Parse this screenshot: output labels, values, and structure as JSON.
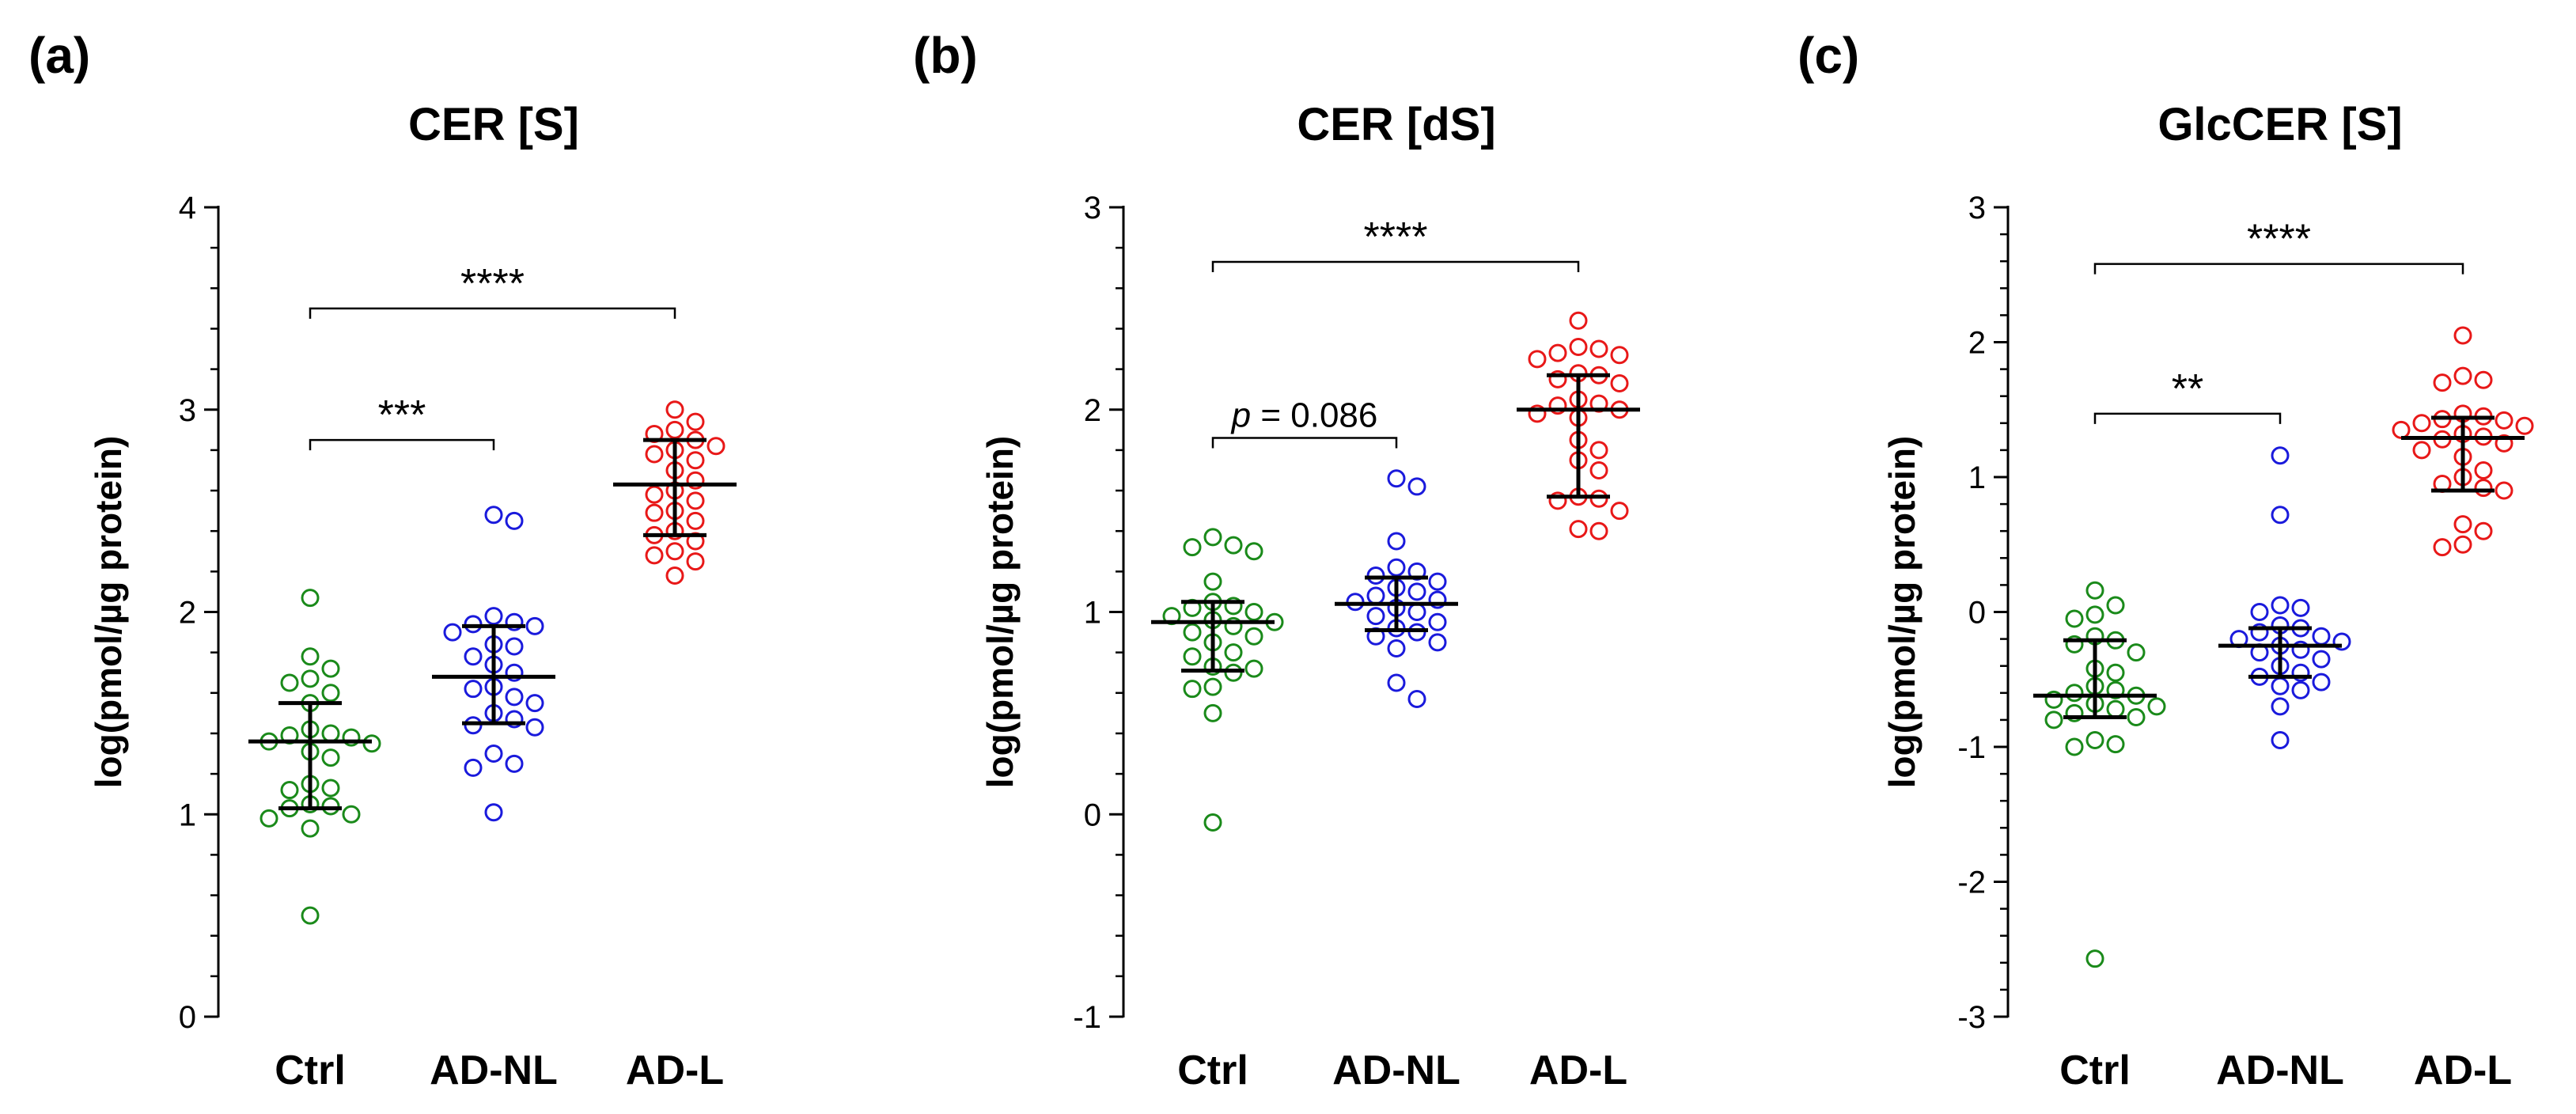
{
  "figure": {
    "y_label": "log(pmol/µg protein)",
    "colors": {
      "Ctrl": "#1a8a1a",
      "AD-NL": "#1a1adc",
      "AD-L": "#e81818",
      "axis": "#000000"
    }
  },
  "chart_data": [
    {
      "type": "scatter",
      "panel_label": "(a)",
      "title": "CER [S]",
      "ylabel": "log(pmol/µg protein)",
      "xlabel": "",
      "categories": [
        "Ctrl",
        "AD-NL",
        "AD-L"
      ],
      "ylim": [
        0,
        4
      ],
      "yticks": [
        0,
        1,
        2,
        3,
        4
      ],
      "tick_labels": [
        "0",
        "1",
        "2",
        "3",
        "4"
      ],
      "series": [
        {
          "name": "Ctrl",
          "median": 1.36,
          "q1": 1.03,
          "q3": 1.55,
          "values": [
            2.07,
            1.78,
            1.72,
            1.67,
            1.65,
            1.6,
            1.55,
            1.42,
            1.4,
            1.39,
            1.38,
            1.36,
            1.35,
            1.31,
            1.28,
            1.15,
            1.13,
            1.12,
            1.05,
            1.04,
            1.03,
            1.0,
            0.98,
            0.93,
            0.5
          ]
        },
        {
          "name": "AD-NL",
          "median": 1.68,
          "q1": 1.45,
          "q3": 1.93,
          "values": [
            2.48,
            2.45,
            1.98,
            1.95,
            1.94,
            1.93,
            1.9,
            1.84,
            1.83,
            1.78,
            1.74,
            1.7,
            1.63,
            1.62,
            1.58,
            1.55,
            1.5,
            1.47,
            1.44,
            1.43,
            1.3,
            1.25,
            1.23,
            1.01
          ]
        },
        {
          "name": "AD-L",
          "median": 2.63,
          "q1": 2.38,
          "q3": 2.85,
          "values": [
            3.0,
            2.94,
            2.9,
            2.88,
            2.85,
            2.82,
            2.8,
            2.78,
            2.75,
            2.7,
            2.65,
            2.6,
            2.58,
            2.55,
            2.5,
            2.49,
            2.45,
            2.4,
            2.38,
            2.35,
            2.3,
            2.28,
            2.25,
            2.18
          ]
        }
      ],
      "annotations": [
        {
          "from": "Ctrl",
          "to": "AD-L",
          "y": 3.5,
          "label": "****",
          "italic_prefix": ""
        },
        {
          "from": "Ctrl",
          "to": "AD-NL",
          "y": 2.85,
          "label": "***",
          "italic_prefix": ""
        }
      ]
    },
    {
      "type": "scatter",
      "panel_label": "(b)",
      "title": "CER [dS]",
      "ylabel": "log(pmol/µg protein)",
      "xlabel": "",
      "categories": [
        "Ctrl",
        "AD-NL",
        "AD-L"
      ],
      "ylim": [
        -1,
        3
      ],
      "yticks": [
        -1,
        0,
        1,
        2,
        3
      ],
      "tick_labels": [
        "-1",
        "0",
        "1",
        "2",
        "3"
      ],
      "series": [
        {
          "name": "Ctrl",
          "median": 0.95,
          "q1": 0.71,
          "q3": 1.05,
          "values": [
            1.37,
            1.33,
            1.32,
            1.3,
            1.15,
            1.05,
            1.03,
            1.02,
            1.0,
            0.98,
            0.96,
            0.95,
            0.93,
            0.9,
            0.88,
            0.85,
            0.8,
            0.78,
            0.73,
            0.72,
            0.7,
            0.63,
            0.62,
            0.5,
            -0.04
          ]
        },
        {
          "name": "AD-NL",
          "median": 1.04,
          "q1": 0.91,
          "q3": 1.17,
          "values": [
            1.66,
            1.62,
            1.35,
            1.22,
            1.2,
            1.18,
            1.15,
            1.12,
            1.1,
            1.08,
            1.06,
            1.05,
            1.02,
            1.0,
            0.98,
            0.95,
            0.92,
            0.9,
            0.88,
            0.85,
            0.82,
            0.65,
            0.57
          ]
        },
        {
          "name": "AD-L",
          "median": 2.0,
          "q1": 1.57,
          "q3": 2.17,
          "values": [
            2.44,
            2.31,
            2.3,
            2.28,
            2.27,
            2.25,
            2.18,
            2.17,
            2.15,
            2.13,
            2.05,
            2.03,
            2.02,
            2.0,
            1.98,
            1.96,
            1.85,
            1.8,
            1.75,
            1.7,
            1.57,
            1.56,
            1.55,
            1.5,
            1.41,
            1.4
          ]
        }
      ],
      "annotations": [
        {
          "from": "Ctrl",
          "to": "AD-L",
          "y": 2.73,
          "label": "****",
          "italic_prefix": ""
        },
        {
          "from": "Ctrl",
          "to": "AD-NL",
          "y": 1.86,
          "label": " = 0.086",
          "italic_prefix": "p"
        }
      ]
    },
    {
      "type": "scatter",
      "panel_label": "(c)",
      "title": "GlcCER [S]",
      "ylabel": "log(pmol/µg protein)",
      "xlabel": "",
      "categories": [
        "Ctrl",
        "AD-NL",
        "AD-L"
      ],
      "ylim": [
        -3,
        3
      ],
      "yticks": [
        -3,
        -2,
        -1,
        0,
        1,
        2,
        3
      ],
      "tick_labels": [
        "-3",
        "-2",
        "-1",
        "0",
        "1",
        "2",
        "3"
      ],
      "series": [
        {
          "name": "Ctrl",
          "median": -0.62,
          "q1": -0.78,
          "q3": -0.21,
          "values": [
            0.16,
            0.05,
            -0.02,
            -0.05,
            -0.18,
            -0.21,
            -0.24,
            -0.3,
            -0.42,
            -0.45,
            -0.55,
            -0.58,
            -0.6,
            -0.62,
            -0.65,
            -0.68,
            -0.7,
            -0.72,
            -0.75,
            -0.78,
            -0.8,
            -0.95,
            -0.98,
            -1.0,
            -2.57
          ]
        },
        {
          "name": "AD-NL",
          "median": -0.25,
          "q1": -0.48,
          "q3": -0.12,
          "values": [
            1.16,
            0.72,
            0.05,
            0.03,
            0.0,
            -0.1,
            -0.12,
            -0.15,
            -0.18,
            -0.2,
            -0.22,
            -0.25,
            -0.28,
            -0.3,
            -0.35,
            -0.4,
            -0.45,
            -0.48,
            -0.52,
            -0.55,
            -0.58,
            -0.7,
            -0.95
          ]
        },
        {
          "name": "AD-L",
          "median": 1.29,
          "q1": 0.9,
          "q3": 1.44,
          "values": [
            2.05,
            1.75,
            1.72,
            1.7,
            1.47,
            1.45,
            1.43,
            1.42,
            1.4,
            1.38,
            1.35,
            1.32,
            1.3,
            1.28,
            1.25,
            1.2,
            1.15,
            1.05,
            1.0,
            0.95,
            0.92,
            0.9,
            0.65,
            0.6,
            0.5,
            0.48
          ]
        }
      ],
      "annotations": [
        {
          "from": "Ctrl",
          "to": "AD-L",
          "y": 2.58,
          "label": "****",
          "italic_prefix": ""
        },
        {
          "from": "Ctrl",
          "to": "AD-NL",
          "y": 1.47,
          "label": "**",
          "italic_prefix": ""
        }
      ]
    }
  ]
}
